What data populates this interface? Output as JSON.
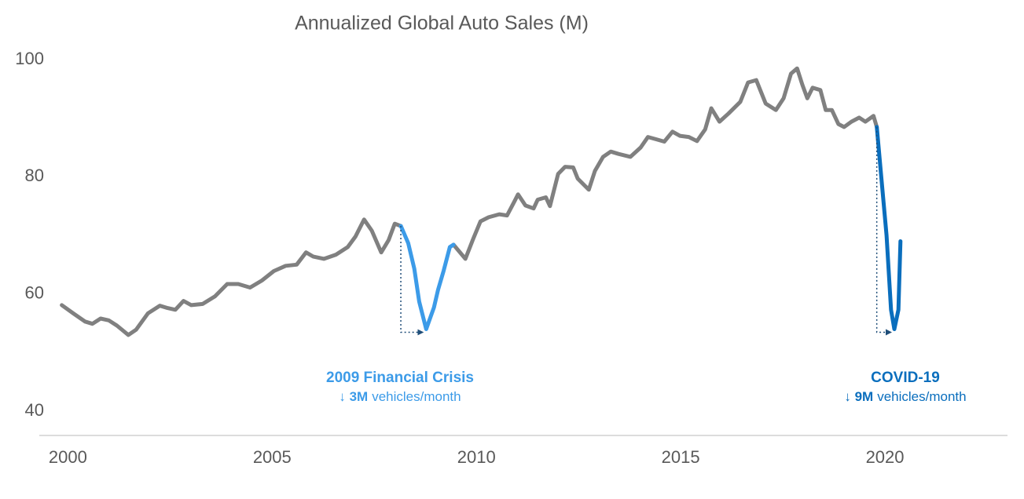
{
  "chart_data": {
    "type": "line",
    "title": "Annualized Global Auto Sales (M)",
    "xlim": [
      1999.3,
      2023
    ],
    "ylim": [
      40,
      100
    ],
    "xticks": [
      2000,
      2005,
      2010,
      2015,
      2020
    ],
    "yticks": [
      40,
      60,
      80,
      100
    ],
    "grid": false,
    "series": [
      {
        "color": "#808080",
        "x": [
          1999.85,
          2000.13,
          2000.42,
          2000.6,
          2000.8,
          2001.0,
          2001.2,
          2001.48,
          2001.67,
          2001.96,
          2002.25,
          2002.44,
          2002.63,
          2002.83,
          2003.02,
          2003.3,
          2003.6,
          2003.9,
          2004.17,
          2004.46,
          2004.75,
          2005.04,
          2005.33,
          2005.6,
          2005.83,
          2006.0,
          2006.27,
          2006.56,
          2006.85,
          2007.04,
          2007.25,
          2007.44,
          2007.67,
          2007.85,
          2008.0,
          2008.15,
          null,
          2009.44,
          2009.73,
          2009.92,
          2010.1,
          2010.3,
          2010.56,
          2010.75,
          2010.93,
          2011.02,
          2011.2,
          2011.4,
          2011.5,
          2011.7,
          2011.8,
          2012.0,
          2012.17,
          2012.37,
          2012.48,
          2012.75,
          2012.9,
          2013.1,
          2013.29,
          2013.48,
          2013.77,
          2014.02,
          2014.2,
          2014.4,
          2014.6,
          2014.8,
          2014.98,
          2015.2,
          2015.4,
          2015.6,
          2015.75,
          2015.95,
          2016.17,
          2016.46,
          2016.65,
          2016.85,
          2017.08,
          2017.33,
          2017.52,
          2017.7,
          2017.85,
          2017.98,
          2018.1,
          2018.23,
          2018.42,
          2018.55,
          2018.7,
          2018.86,
          2019.0,
          2019.18,
          2019.37,
          2019.52,
          2019.72,
          2019.8
        ],
        "values": [
          58.1,
          56.7,
          55.3,
          54.9,
          55.8,
          55.5,
          54.6,
          53.0,
          53.9,
          56.7,
          58.0,
          57.6,
          57.3,
          58.8,
          58.1,
          58.3,
          59.6,
          61.7,
          61.7,
          61.1,
          62.3,
          63.9,
          64.8,
          65.0,
          67.1,
          66.4,
          66.0,
          66.7,
          68.0,
          69.8,
          72.7,
          70.8,
          67.1,
          69.2,
          72.0,
          71.6,
          null,
          68.4,
          66.0,
          69.4,
          72.4,
          73.1,
          73.6,
          73.4,
          75.8,
          77.0,
          75.1,
          74.6,
          76.1,
          76.5,
          75.0,
          80.5,
          81.7,
          81.6,
          79.7,
          77.8,
          81.0,
          83.4,
          84.3,
          83.9,
          83.4,
          85.0,
          86.8,
          86.4,
          86.0,
          87.7,
          87.0,
          86.8,
          86.1,
          88.1,
          91.7,
          89.4,
          90.8,
          92.8,
          96.1,
          96.5,
          92.5,
          91.4,
          93.4,
          97.6,
          98.5,
          95.7,
          93.4,
          95.2,
          94.8,
          91.4,
          91.4,
          89.0,
          88.5,
          89.4,
          90.1,
          89.4,
          90.4,
          88.5
        ]
      },
      {
        "color": "#3c9be8",
        "x": [
          2008.15,
          2008.33,
          2008.48,
          2008.6,
          2008.77,
          2008.96,
          2009.06,
          2009.2,
          2009.35,
          2009.44
        ],
        "values": [
          71.6,
          68.7,
          64.3,
          58.7,
          54.0,
          57.7,
          60.7,
          64.0,
          68.0,
          68.4
        ]
      },
      {
        "color": "#0a6ebd",
        "x": [
          2019.8,
          2019.9,
          2020.04,
          2020.15,
          2020.23,
          2020.33,
          2020.38
        ],
        "values": [
          88.5,
          80.7,
          70.0,
          57.3,
          54.0,
          57.3,
          69.0
        ]
      }
    ],
    "annotations": [
      {
        "title": "2009 Financial Crisis",
        "detail_bold": "↓ 3M",
        "detail": "vehicles/month",
        "color": "#3c9be8"
      },
      {
        "title": "COVID-19",
        "detail_bold": "↓ 9M",
        "detail": "vehicles/month",
        "color": "#0a6ebd"
      }
    ]
  }
}
